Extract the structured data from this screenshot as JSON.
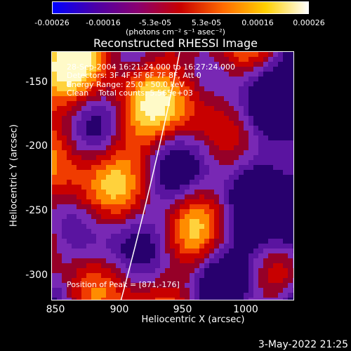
{
  "colorbar": {
    "tick_labels": [
      "-0.00026",
      "-0.00016",
      "-5.3e-05",
      "5.3e-05",
      "0.00016",
      "0.00026"
    ],
    "units_text": "(photons cm⁻² s⁻¹ asec⁻²)",
    "range": [
      -0.00026,
      0.00026
    ],
    "colors": [
      "#0000ff",
      "#4b00a8",
      "#8a0070",
      "#c80000",
      "#ff6a00",
      "#ffd000",
      "#ffffff"
    ]
  },
  "title": "Reconstructed RHESSI Image",
  "annotations": {
    "time_range": "28-Sep-2004 16:21:24.000 to 16:27:24.000",
    "detectors": "Detectors: 3F 4F 5F 6F 7F 8F, Att 0",
    "energy_range": "Energy Range: 25.0 - 50.0 keV",
    "clean_counts": "Clean    Total counts: 5.565e+03",
    "peak_position": "Position of Peak = [871,-176]"
  },
  "axes": {
    "xlabel": "Heliocentric X (arcsec)",
    "ylabel": "Heliocentric Y (arcsec)",
    "xlim": [
      850,
      1040
    ],
    "ylim": [
      -320,
      -125
    ],
    "xticks": [
      "850",
      "900",
      "950",
      "1000"
    ],
    "yticks": [
      "-150",
      "-200",
      "-250",
      "-300"
    ]
  },
  "datestamp": "3-May-2022 21:25"
}
